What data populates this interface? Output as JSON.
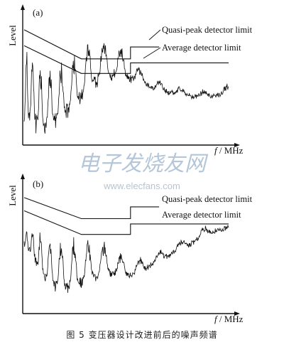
{
  "caption": "图 5   变压器设计改进前后的噪声频谱",
  "watermark": {
    "cn": "电子发烧友网",
    "url": "www.elecfans.com"
  },
  "chart_data": [
    {
      "type": "line",
      "panel_label": "(a)",
      "ylabel": "Level",
      "xlabel_italic": "f",
      "xlabel_rest": " / MHz",
      "limits": [
        {
          "name": "Quasi-peak detector limit",
          "x": [
            0,
            0.28,
            0.52,
            0.52,
            1.0
          ],
          "y": [
            0.85,
            0.63,
            0.63,
            0.72,
            0.72
          ]
        },
        {
          "name": "Average detector limit",
          "x": [
            0,
            0.28,
            0.52,
            0.52,
            1.0
          ],
          "y": [
            0.73,
            0.52,
            0.52,
            0.6,
            0.6
          ]
        }
      ],
      "noise": {
        "x": [
          0,
          0.03,
          0.06,
          0.1,
          0.15,
          0.2,
          0.26,
          0.3,
          0.35,
          0.4,
          0.46,
          0.52,
          0.58,
          0.65,
          0.72,
          0.8,
          0.88,
          0.94,
          1.0
        ],
        "base": [
          0.3,
          0.28,
          0.22,
          0.18,
          0.22,
          0.28,
          0.36,
          0.44,
          0.5,
          0.54,
          0.54,
          0.5,
          0.46,
          0.4,
          0.38,
          0.36,
          0.34,
          0.36,
          0.38
        ],
        "spike": [
          0.4,
          0.45,
          0.42,
          0.36,
          0.34,
          0.32,
          0.3,
          0.28,
          0.28,
          0.26,
          0.2,
          0.12,
          0.08,
          0.06,
          0.04,
          0.04,
          0.04,
          0.05,
          0.05
        ]
      }
    },
    {
      "type": "line",
      "panel_label": "(b)",
      "ylabel": "Level",
      "xlabel_italic": "f",
      "xlabel_rest": " / MHz",
      "limits": [
        {
          "name": "Quasi-peak detector limit",
          "x": [
            0,
            0.28,
            0.52,
            0.52,
            1.0
          ],
          "y": [
            0.86,
            0.7,
            0.7,
            0.79,
            0.79
          ]
        },
        {
          "name": "Average detector limit",
          "x": [
            0,
            0.28,
            0.52,
            0.52,
            1.0
          ],
          "y": [
            0.76,
            0.58,
            0.58,
            0.66,
            0.66
          ]
        }
      ],
      "noise": {
        "x": [
          0,
          0.03,
          0.06,
          0.1,
          0.15,
          0.2,
          0.26,
          0.3,
          0.35,
          0.4,
          0.46,
          0.52,
          0.58,
          0.65,
          0.72,
          0.8,
          0.88,
          0.94,
          1.0
        ],
        "base": [
          0.52,
          0.48,
          0.4,
          0.3,
          0.24,
          0.22,
          0.24,
          0.28,
          0.3,
          0.32,
          0.3,
          0.28,
          0.32,
          0.38,
          0.44,
          0.5,
          0.58,
          0.62,
          0.6
        ],
        "spike": [
          0.1,
          0.12,
          0.2,
          0.26,
          0.3,
          0.3,
          0.28,
          0.26,
          0.22,
          0.18,
          0.14,
          0.1,
          0.08,
          0.06,
          0.05,
          0.05,
          0.05,
          0.04,
          0.04
        ]
      }
    }
  ]
}
